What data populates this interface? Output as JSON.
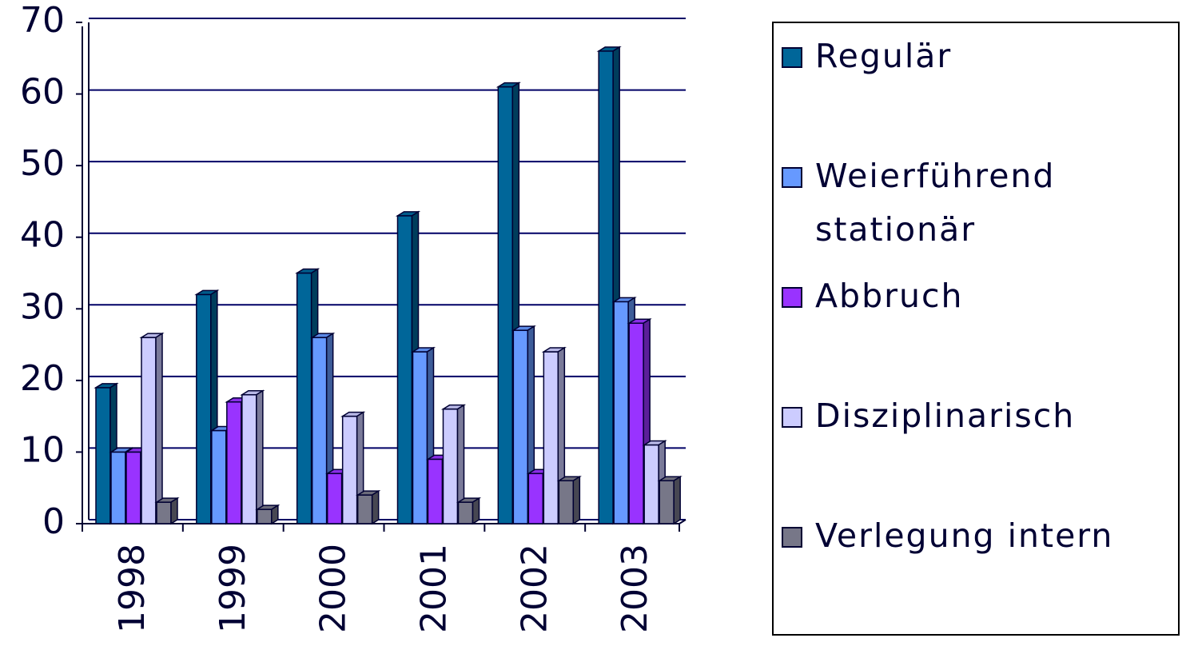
{
  "chart_data": {
    "type": "bar",
    "categories": [
      "1998",
      "1999",
      "2000",
      "2001",
      "2002",
      "2003"
    ],
    "series": [
      {
        "name": "Regulär",
        "color": "#006699",
        "values": [
          19,
          32,
          35,
          43,
          61,
          66
        ]
      },
      {
        "name": "Weierführend stationär",
        "color": "#6699ff",
        "values": [
          10,
          13,
          26,
          24,
          27,
          31
        ]
      },
      {
        "name": "Abbruch",
        "color": "#9933ff",
        "values": [
          10,
          17,
          7,
          9,
          7,
          28
        ]
      },
      {
        "name": "Disziplinarisch",
        "color": "#ccccff",
        "values": [
          26,
          18,
          15,
          16,
          24,
          11
        ]
      },
      {
        "name": "Verlegung intern",
        "color": "#777788",
        "values": [
          3,
          2,
          4,
          3,
          6,
          6
        ]
      }
    ],
    "ylim": [
      0,
      70
    ],
    "yticks": [
      0,
      10,
      20,
      30,
      40,
      50,
      60,
      70
    ],
    "grid": true,
    "legend": "right"
  }
}
